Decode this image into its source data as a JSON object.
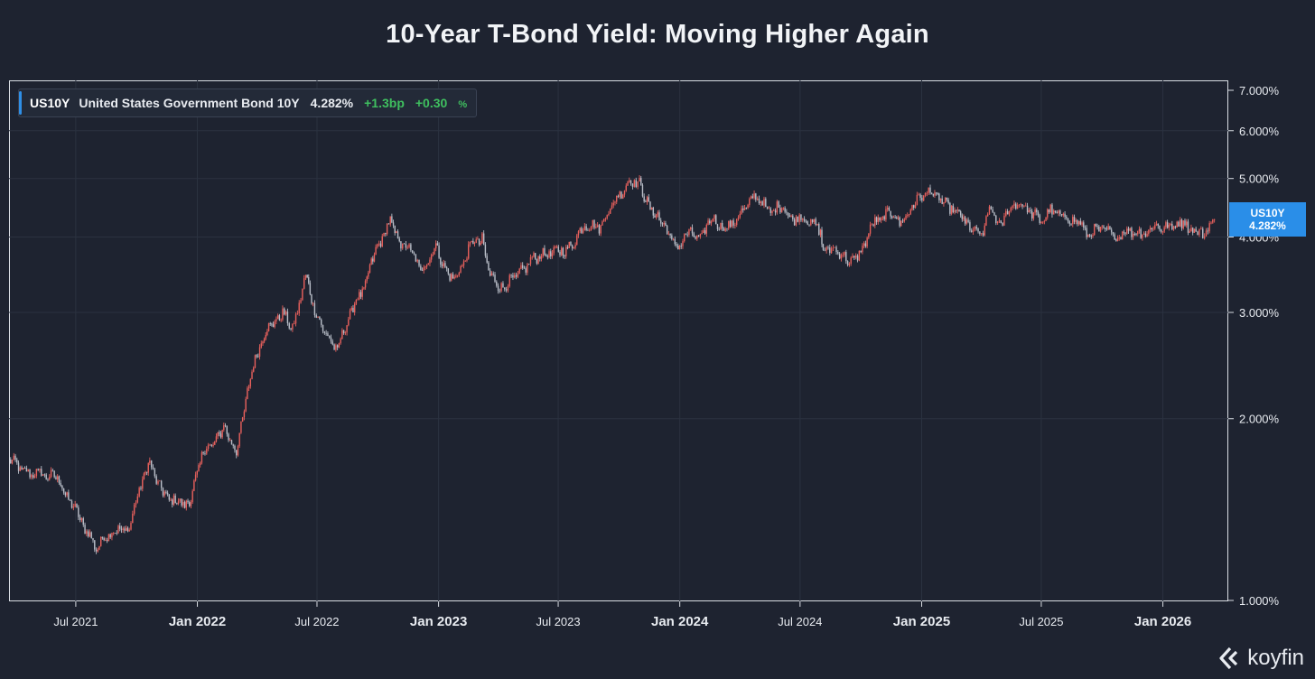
{
  "title": "10-Year T-Bond Yield: Moving Higher Again",
  "legend": {
    "symbol": "US10Y",
    "name": "United States Government Bond 10Y",
    "value": "4.282%",
    "change_bp": "+1.3bp",
    "change_pct": "+0.30",
    "change_pct_unit": "%"
  },
  "last_tag": {
    "symbol": "US10Y",
    "value": "4.282%"
  },
  "logo": {
    "text": "koyfin",
    "icon": "koyfin-logo-icon"
  },
  "colors": {
    "background": "#1e2330",
    "down": "#e8605c",
    "up": "#b9bec8",
    "accent": "#2a8ee8",
    "positive": "#3fbf5f"
  },
  "chart_data": {
    "type": "line",
    "style": "candlestick",
    "scale": "log",
    "grid": true,
    "legend_position": "top-left",
    "ylim": [
      1.0,
      7.0
    ],
    "y_ticks": [
      {
        "value": 7.0,
        "label": "7.000%"
      },
      {
        "value": 6.0,
        "label": "6.000%"
      },
      {
        "value": 5.0,
        "label": "5.000%"
      },
      {
        "value": 4.0,
        "label": "4.000%"
      },
      {
        "value": 3.0,
        "label": "3.000%"
      },
      {
        "value": 2.0,
        "label": "2.000%"
      },
      {
        "value": 1.0,
        "label": "1.000%"
      }
    ],
    "xlim": [
      "2021-03-22",
      "2026-04-10"
    ],
    "x_ticks": [
      {
        "date": "2021-07-01",
        "label": "Jul 2021",
        "major": false
      },
      {
        "date": "2022-01-01",
        "label": "Jan 2022",
        "major": true
      },
      {
        "date": "2022-07-01",
        "label": "Jul 2022",
        "major": false
      },
      {
        "date": "2023-01-01",
        "label": "Jan 2023",
        "major": true
      },
      {
        "date": "2023-07-01",
        "label": "Jul 2023",
        "major": false
      },
      {
        "date": "2024-01-01",
        "label": "Jan 2024",
        "major": true
      },
      {
        "date": "2024-07-01",
        "label": "Jul 2024",
        "major": false
      },
      {
        "date": "2025-01-01",
        "label": "Jan 2025",
        "major": true
      },
      {
        "date": "2025-07-01",
        "label": "Jul 2025",
        "major": false
      },
      {
        "date": "2026-01-01",
        "label": "Jan 2026",
        "major": true
      }
    ],
    "series": [
      {
        "symbol": "US10Y",
        "dates": [
          "2021-03-22",
          "2021-04-15",
          "2021-05-05",
          "2021-06-01",
          "2021-06-20",
          "2021-07-10",
          "2021-08-01",
          "2021-08-15",
          "2021-09-01",
          "2021-09-20",
          "2021-10-10",
          "2021-10-21",
          "2021-11-10",
          "2021-12-01",
          "2021-12-20",
          "2022-01-10",
          "2022-01-25",
          "2022-02-10",
          "2022-03-01",
          "2022-03-20",
          "2022-04-10",
          "2022-04-28",
          "2022-05-10",
          "2022-05-25",
          "2022-06-14",
          "2022-06-25",
          "2022-07-10",
          "2022-08-01",
          "2022-08-20",
          "2022-09-10",
          "2022-09-28",
          "2022-10-20",
          "2022-11-05",
          "2022-11-20",
          "2022-12-05",
          "2022-12-28",
          "2023-01-18",
          "2023-02-01",
          "2023-02-20",
          "2023-03-08",
          "2023-03-20",
          "2023-04-06",
          "2023-05-01",
          "2023-05-25",
          "2023-06-15",
          "2023-07-06",
          "2023-07-20",
          "2023-08-10",
          "2023-09-01",
          "2023-09-25",
          "2023-10-19",
          "2023-11-01",
          "2023-11-15",
          "2023-12-01",
          "2023-12-27",
          "2024-01-15",
          "2024-02-01",
          "2024-02-20",
          "2024-03-10",
          "2024-04-01",
          "2024-04-25",
          "2024-05-15",
          "2024-06-01",
          "2024-06-20",
          "2024-07-10",
          "2024-08-01",
          "2024-08-05",
          "2024-08-20",
          "2024-09-16",
          "2024-10-01",
          "2024-10-20",
          "2024-11-15",
          "2024-12-01",
          "2024-12-20",
          "2025-01-14",
          "2025-02-01",
          "2025-02-20",
          "2025-03-10",
          "2025-04-04",
          "2025-04-11",
          "2025-05-01",
          "2025-05-21",
          "2025-06-10",
          "2025-07-01",
          "2025-07-15",
          "2025-08-01",
          "2025-08-20",
          "2025-09-10",
          "2025-10-01",
          "2025-10-20",
          "2025-11-10",
          "2025-12-01",
          "2025-12-20",
          "2026-01-15",
          "2026-02-01",
          "2026-02-20",
          "2026-03-05",
          "2026-03-20"
        ],
        "yields": [
          1.72,
          1.63,
          1.62,
          1.6,
          1.48,
          1.35,
          1.22,
          1.28,
          1.3,
          1.32,
          1.6,
          1.68,
          1.5,
          1.45,
          1.45,
          1.78,
          1.8,
          1.95,
          1.75,
          2.3,
          2.75,
          2.9,
          3.0,
          2.8,
          3.45,
          3.1,
          2.8,
          2.6,
          3.0,
          3.3,
          3.8,
          4.25,
          3.9,
          3.8,
          3.5,
          3.85,
          3.4,
          3.5,
          3.9,
          3.95,
          3.45,
          3.3,
          3.45,
          3.7,
          3.75,
          3.8,
          3.85,
          4.2,
          4.15,
          4.6,
          4.98,
          4.9,
          4.5,
          4.3,
          3.85,
          4.05,
          4.0,
          4.3,
          4.1,
          4.35,
          4.7,
          4.4,
          4.5,
          4.3,
          4.3,
          4.1,
          3.78,
          3.85,
          3.62,
          3.8,
          4.2,
          4.4,
          4.2,
          4.55,
          4.79,
          4.55,
          4.45,
          4.2,
          4.0,
          4.45,
          4.2,
          4.58,
          4.45,
          4.25,
          4.45,
          4.3,
          4.3,
          4.05,
          4.15,
          4.0,
          4.1,
          4.05,
          4.15,
          4.15,
          4.25,
          4.05,
          4.05,
          4.28
        ]
      }
    ]
  }
}
